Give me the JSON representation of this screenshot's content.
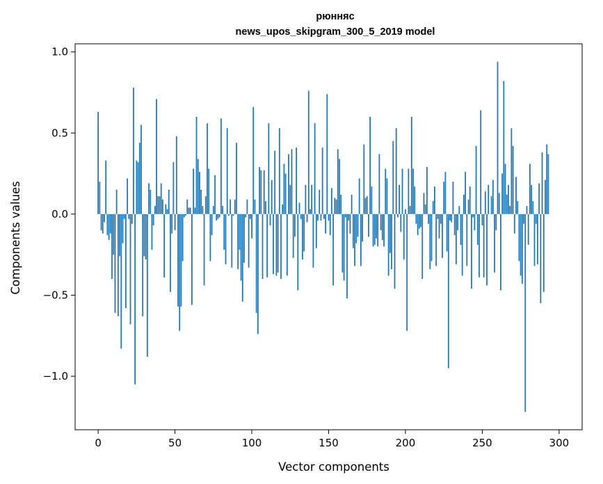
{
  "chart_data": {
    "type": "bar",
    "title_line1": "рюнняс",
    "title_line2": "news_upos_skipgram_300_5_2019 model",
    "xlabel": "Vector components",
    "ylabel": "Components values",
    "xlim": [
      -15,
      315
    ],
    "ylim": [
      -1.33,
      1.05
    ],
    "xticks": [
      {
        "v": 0,
        "label": "0"
      },
      {
        "v": 50,
        "label": "50"
      },
      {
        "v": 100,
        "label": "100"
      },
      {
        "v": 150,
        "label": "150"
      },
      {
        "v": 200,
        "label": "200"
      },
      {
        "v": 250,
        "label": "250"
      },
      {
        "v": 300,
        "label": "300"
      }
    ],
    "yticks": [
      {
        "v": 1.0,
        "label": "1.0"
      },
      {
        "v": 0.5,
        "label": "0.5"
      },
      {
        "v": 0.0,
        "label": "0.0"
      },
      {
        "v": -0.5,
        "label": "−0.5"
      },
      {
        "v": -1.0,
        "label": "−1.0"
      }
    ],
    "bar_color": "#1f77b4",
    "grid": false,
    "values": [
      0.63,
      0.2,
      -0.1,
      -0.12,
      -0.05,
      0.33,
      -0.13,
      -0.16,
      -0.12,
      -0.4,
      -0.25,
      -0.61,
      0.15,
      -0.63,
      -0.26,
      -0.83,
      -0.18,
      -0.03,
      -0.58,
      0.22,
      -0.03,
      -0.68,
      -0.06,
      0.78,
      -1.05,
      0.33,
      0.32,
      0.44,
      0.55,
      -0.63,
      -0.26,
      -0.28,
      -0.88,
      0.19,
      0.15,
      -0.22,
      -0.07,
      0.05,
      0.71,
      0.11,
      0.11,
      0.19,
      0.09,
      -0.39,
      0.06,
      0.03,
      0.15,
      -0.48,
      -0.12,
      0.32,
      -0.1,
      0.48,
      -0.57,
      -0.72,
      -0.57,
      -0.29,
      -0.02,
      -0.01,
      0.09,
      0.04,
      0.04,
      -0.56,
      0.28,
      0.04,
      0.6,
      0.34,
      0.26,
      0.15,
      0.05,
      -0.44,
      0.11,
      0.56,
      0.28,
      -0.29,
      -0.13,
      0.05,
      0.24,
      -0.04,
      -0.03,
      -0.02,
      0.59,
      0.05,
      -0.22,
      -0.31,
      0.53,
      -0.01,
      0.09,
      -0.33,
      -0.01,
      0.09,
      0.44,
      -0.34,
      -0.22,
      -0.41,
      -0.54,
      -0.3,
      -0.02,
      0.09,
      -0.33,
      -0.03,
      -0.15,
      0.66,
      0.09,
      -0.61,
      -0.74,
      0.29,
      0.27,
      -0.4,
      0.27,
      0.08,
      -0.39,
      0.56,
      -0.07,
      0.21,
      -0.37,
      0.39,
      -0.38,
      -0.36,
      0.53,
      -0.4,
      0.06,
      0.31,
      0.25,
      -0.38,
      0.37,
      0.18,
      0.4,
      -0.27,
      -0.14,
      0.41,
      -0.47,
      0.07,
      -0.03,
      -0.28,
      -0.23,
      0.18,
      -0.05,
      0.76,
      0.03,
      0.18,
      -0.33,
      0.56,
      -0.21,
      -0.04,
      0.15,
      -0.04,
      0.41,
      -0.03,
      -0.12,
      0.74,
      -0.04,
      -0.13,
      0.16,
      -0.44,
      0.1,
      0.09,
      0.4,
      0.34,
      0.12,
      -0.36,
      -0.41,
      -0.02,
      -0.52,
      -0.04,
      -0.12,
      0.12,
      -0.21,
      -0.32,
      -0.18,
      -0.14,
      0.22,
      -0.32,
      -0.17,
      0.43,
      0.1,
      0.11,
      -0.14,
      0.6,
      0.17,
      -0.2,
      -0.19,
      -0.15,
      -0.2,
      0.37,
      -0.1,
      -0.16,
      -0.2,
      0.28,
      0.22,
      -0.38,
      -0.24,
      -0.34,
      0.45,
      -0.46,
      0.53,
      -0.02,
      0.18,
      -0.11,
      0.28,
      -0.28,
      0.03,
      -0.72,
      0.28,
      0.05,
      0.6,
      0.28,
      0.17,
      -0.06,
      -0.13,
      -0.09,
      -0.08,
      -0.4,
      0.13,
      0.06,
      0.29,
      -0.06,
      -0.34,
      -0.29,
      0.08,
      0.17,
      -0.32,
      -0.03,
      -0.15,
      -0.06,
      -0.27,
      0.2,
      0.26,
      -0.23,
      -0.95,
      -0.04,
      -0.05,
      0.2,
      -0.13,
      -0.31,
      -0.1,
      0.05,
      -0.19,
      -0.38,
      0.12,
      0.26,
      -0.32,
      0.09,
      0.17,
      -0.46,
      -0.02,
      -0.1,
      0.42,
      -0.19,
      -0.39,
      0.64,
      -0.07,
      -0.39,
      0.14,
      -0.44,
      0.18,
      0.0,
      0.11,
      0.21,
      -0.36,
      -0.1,
      0.94,
      0.13,
      -0.47,
      0.25,
      0.82,
      0.31,
      0.12,
      0.18,
      0.05,
      0.53,
      0.42,
      -0.12,
      0.23,
      0.08,
      -0.29,
      -0.38,
      -0.43,
      -0.06,
      -1.22,
      0.05,
      -0.19,
      0.31,
      0.18,
      0.08,
      -0.32,
      -0.06,
      -0.31,
      0.19,
      -0.55,
      0.38,
      -0.48,
      0.21,
      0.43,
      0.37
    ]
  }
}
